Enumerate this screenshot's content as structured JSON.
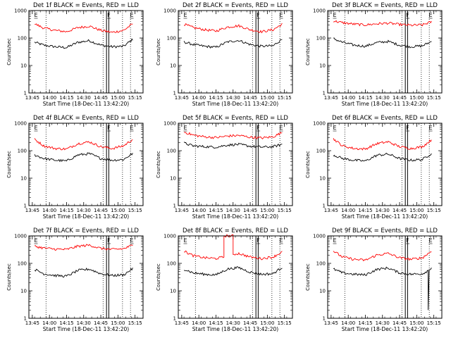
{
  "figure": {
    "background": "#ffffff",
    "plot_background": "#ffffff",
    "frame_color": "#000000",
    "events_color": "#000000",
    "lld_color": "#ff0000"
  },
  "chart_data": [
    {
      "type": "line",
      "title": "Det 1f BLACK = Events, RED = LLD",
      "xlabel": "Start Time (18-Dec-11 13:42:20)",
      "ylabel": "Counts/sec",
      "xlim": [
        "13:42",
        "15:22"
      ],
      "xticks": [
        "13:45",
        "14:00",
        "14:15",
        "14:30",
        "14:45",
        "15:00",
        "15:15"
      ],
      "yscale": "log",
      "ylim": [
        1,
        1000
      ],
      "yticks": [
        "1",
        "10",
        "100",
        "1000"
      ],
      "markers": [
        {
          "label": "E",
          "x": "13:46"
        },
        {
          "label": "F",
          "x": "14:50"
        },
        {
          "label": "E",
          "x": "15:10"
        }
      ],
      "dotted_lines": [
        "13:57",
        "14:47",
        "15:04",
        "15:11"
      ],
      "solid_lines": [
        "14:50",
        "14:52"
      ],
      "series": [
        {
          "name": "BLACK = Events",
          "color": "#000000",
          "x": [
            "13:47",
            "13:55",
            "14:05",
            "14:15",
            "14:25",
            "14:35",
            "14:45",
            "14:55",
            "15:05",
            "15:13"
          ],
          "values": [
            70,
            55,
            48,
            45,
            70,
            80,
            55,
            48,
            50,
            90
          ]
        },
        {
          "name": "RED = LLD",
          "color": "#ff0000",
          "x": [
            "13:47",
            "13:55",
            "14:05",
            "14:15",
            "14:25",
            "14:35",
            "14:45",
            "14:55",
            "15:05",
            "15:13"
          ],
          "values": [
            330,
            230,
            190,
            170,
            240,
            270,
            190,
            160,
            190,
            330
          ]
        }
      ]
    },
    {
      "type": "line",
      "title": "Det 2f BLACK = Events, RED = LLD",
      "xlabel": "Start Time (18-Dec-11 13:42:20)",
      "ylabel": "Counts/sec",
      "xlim": [
        "13:42",
        "15:22"
      ],
      "xticks": [
        "13:45",
        "14:00",
        "14:15",
        "14:30",
        "14:45",
        "15:00",
        "15:15"
      ],
      "yscale": "log",
      "ylim": [
        1,
        1000
      ],
      "yticks": [
        "1",
        "10",
        "100",
        "1000"
      ],
      "markers": [
        {
          "label": "E",
          "x": "13:46"
        },
        {
          "label": "F",
          "x": "14:50"
        },
        {
          "label": "E",
          "x": "15:10"
        }
      ],
      "dotted_lines": [
        "13:57",
        "14:47",
        "15:04",
        "15:11"
      ],
      "solid_lines": [
        "14:50",
        "14:52"
      ],
      "series": [
        {
          "name": "BLACK = Events",
          "color": "#000000",
          "x": [
            "13:47",
            "13:55",
            "14:05",
            "14:15",
            "14:25",
            "14:35",
            "14:45",
            "14:55",
            "15:05",
            "15:13"
          ],
          "values": [
            72,
            58,
            50,
            46,
            72,
            82,
            58,
            50,
            52,
            92
          ]
        },
        {
          "name": "RED = LLD",
          "color": "#ff0000",
          "x": [
            "13:47",
            "13:55",
            "14:05",
            "14:15",
            "14:25",
            "14:35",
            "14:45",
            "14:55",
            "15:05",
            "15:13"
          ],
          "values": [
            320,
            240,
            200,
            180,
            250,
            280,
            200,
            170,
            200,
            320
          ]
        }
      ]
    },
    {
      "type": "line",
      "title": "Det 3f BLACK = Events, RED = LLD",
      "xlabel": "Start Time (18-Dec-11 13:42:20)",
      "ylabel": "Counts/sec",
      "xlim": [
        "13:42",
        "15:22"
      ],
      "xticks": [
        "13:45",
        "14:00",
        "14:15",
        "14:30",
        "14:45",
        "15:00",
        "15:15"
      ],
      "yscale": "log",
      "ylim": [
        1,
        1000
      ],
      "yticks": [
        "1",
        "10",
        "100",
        "1000"
      ],
      "markers": [
        {
          "label": "E",
          "x": "13:46"
        },
        {
          "label": "F",
          "x": "14:50"
        },
        {
          "label": "E",
          "x": "15:10"
        }
      ],
      "dotted_lines": [
        "13:57",
        "14:47",
        "15:04",
        "15:11"
      ],
      "solid_lines": [
        "14:50",
        "14:52"
      ],
      "series": [
        {
          "name": "BLACK = Events",
          "color": "#000000",
          "x": [
            "13:47",
            "13:55",
            "14:05",
            "14:15",
            "14:25",
            "14:35",
            "14:45",
            "14:55",
            "15:05",
            "15:13"
          ],
          "values": [
            95,
            70,
            55,
            50,
            68,
            75,
            55,
            48,
            52,
            75
          ]
        },
        {
          "name": "RED = LLD",
          "color": "#ff0000",
          "x": [
            "13:47",
            "13:55",
            "14:05",
            "14:15",
            "14:25",
            "14:35",
            "14:45",
            "14:55",
            "15:05",
            "15:13"
          ],
          "values": [
            420,
            360,
            320,
            300,
            330,
            350,
            310,
            290,
            300,
            390
          ]
        }
      ]
    },
    {
      "type": "line",
      "title": "Det 4f BLACK = Events, RED = LLD",
      "xlabel": "Start Time (18-Dec-11 13:42:20)",
      "ylabel": "Counts/sec",
      "xlim": [
        "13:42",
        "15:22"
      ],
      "xticks": [
        "13:45",
        "14:00",
        "14:15",
        "14:30",
        "14:45",
        "15:00",
        "15:15"
      ],
      "yscale": "log",
      "ylim": [
        1,
        1000
      ],
      "yticks": [
        "1",
        "10",
        "100",
        "1000"
      ],
      "markers": [
        {
          "label": "E",
          "x": "13:46"
        },
        {
          "label": "F",
          "x": "14:50"
        },
        {
          "label": "E",
          "x": "15:10"
        }
      ],
      "dotted_lines": [
        "13:57",
        "14:47",
        "15:04",
        "15:11"
      ],
      "solid_lines": [
        "14:50",
        "14:52"
      ],
      "series": [
        {
          "name": "BLACK = Events",
          "color": "#000000",
          "x": [
            "13:47",
            "13:55",
            "14:05",
            "14:15",
            "14:25",
            "14:35",
            "14:45",
            "14:55",
            "15:05",
            "15:13"
          ],
          "values": [
            70,
            52,
            45,
            42,
            70,
            78,
            52,
            45,
            48,
            80
          ]
        },
        {
          "name": "RED = LLD",
          "color": "#ff0000",
          "x": [
            "13:47",
            "13:55",
            "14:05",
            "14:15",
            "14:25",
            "14:35",
            "14:45",
            "14:55",
            "15:05",
            "15:13"
          ],
          "values": [
            260,
            150,
            120,
            115,
            180,
            210,
            140,
            120,
            150,
            260
          ]
        }
      ]
    },
    {
      "type": "line",
      "title": "Det 5f BLACK = Events, RED = LLD",
      "xlabel": "Start Time (18-Dec-11 13:42:20)",
      "ylabel": "Counts/sec",
      "xlim": [
        "13:42",
        "15:22"
      ],
      "xticks": [
        "13:45",
        "14:00",
        "14:15",
        "14:30",
        "14:45",
        "15:00",
        "15:15"
      ],
      "yscale": "log",
      "ylim": [
        1,
        1000
      ],
      "yticks": [
        "1",
        "10",
        "100",
        "1000"
      ],
      "markers": [
        {
          "label": "E",
          "x": "13:46"
        },
        {
          "label": "F",
          "x": "14:50"
        },
        {
          "label": "E",
          "x": "15:10"
        }
      ],
      "dotted_lines": [
        "13:57",
        "14:47",
        "15:04",
        "15:11"
      ],
      "solid_lines": [
        "14:50",
        "14:52"
      ],
      "series": [
        {
          "name": "BLACK = Events",
          "color": "#000000",
          "x": [
            "13:47",
            "13:55",
            "14:05",
            "14:15",
            "14:25",
            "14:35",
            "14:45",
            "14:55",
            "15:05",
            "15:13"
          ],
          "values": [
            190,
            150,
            140,
            135,
            160,
            170,
            145,
            135,
            140,
            170
          ]
        },
        {
          "name": "RED = LLD",
          "color": "#ff0000",
          "x": [
            "13:47",
            "13:55",
            "14:05",
            "14:15",
            "14:25",
            "14:35",
            "14:45",
            "14:55",
            "15:05",
            "15:13"
          ],
          "values": [
            480,
            370,
            320,
            300,
            340,
            360,
            310,
            290,
            320,
            460
          ]
        }
      ]
    },
    {
      "type": "line",
      "title": "Det 6f BLACK = Events, RED = LLD",
      "xlabel": "Start Time (18-Dec-11 13:42:20)",
      "ylabel": "Counts/sec",
      "xlim": [
        "13:42",
        "15:22"
      ],
      "xticks": [
        "13:45",
        "14:00",
        "14:15",
        "14:30",
        "14:45",
        "15:00",
        "15:15"
      ],
      "yscale": "log",
      "ylim": [
        1,
        1000
      ],
      "yticks": [
        "1",
        "10",
        "100",
        "1000"
      ],
      "markers": [
        {
          "label": "E",
          "x": "13:46"
        },
        {
          "label": "F",
          "x": "14:50"
        },
        {
          "label": "E",
          "x": "15:10"
        }
      ],
      "dotted_lines": [
        "13:57",
        "14:47",
        "15:04",
        "15:11"
      ],
      "solid_lines": [
        "14:50",
        "14:52"
      ],
      "series": [
        {
          "name": "BLACK = Events",
          "color": "#000000",
          "x": [
            "13:47",
            "13:55",
            "14:05",
            "14:15",
            "14:25",
            "14:35",
            "14:45",
            "14:55",
            "15:05",
            "15:13"
          ],
          "values": [
            70,
            52,
            45,
            42,
            68,
            75,
            52,
            45,
            48,
            80
          ]
        },
        {
          "name": "RED = LLD",
          "color": "#ff0000",
          "x": [
            "13:47",
            "13:55",
            "14:05",
            "14:15",
            "14:25",
            "14:35",
            "14:45",
            "14:55",
            "15:05",
            "15:13"
          ],
          "values": [
            270,
            150,
            120,
            115,
            180,
            210,
            140,
            120,
            140,
            250
          ]
        }
      ]
    },
    {
      "type": "line",
      "title": "Det 7f BLACK = Events, RED = LLD",
      "xlabel": "Start Time (18-Dec-11 13:42:20)",
      "ylabel": "Counts/sec",
      "xlim": [
        "13:42",
        "15:22"
      ],
      "xticks": [
        "13:45",
        "14:00",
        "14:15",
        "14:30",
        "14:45",
        "15:00",
        "15:15"
      ],
      "yscale": "log",
      "ylim": [
        1,
        1000
      ],
      "yticks": [
        "1",
        "10",
        "100",
        "1000"
      ],
      "markers": [
        {
          "label": "E",
          "x": "13:46"
        },
        {
          "label": "F",
          "x": "14:50"
        },
        {
          "label": "E",
          "x": "15:10"
        }
      ],
      "dotted_lines": [
        "13:57",
        "14:47",
        "15:04",
        "15:11"
      ],
      "solid_lines": [
        "14:50",
        "14:52"
      ],
      "series": [
        {
          "name": "BLACK = Events",
          "color": "#000000",
          "x": [
            "13:47",
            "13:55",
            "14:05",
            "14:15",
            "14:25",
            "14:35",
            "14:45",
            "14:55",
            "15:05",
            "15:13"
          ],
          "values": [
            60,
            42,
            36,
            34,
            55,
            62,
            42,
            36,
            38,
            65
          ]
        },
        {
          "name": "RED = LLD",
          "color": "#ff0000",
          "x": [
            "13:47",
            "13:55",
            "14:05",
            "14:15",
            "14:25",
            "14:35",
            "14:45",
            "14:55",
            "15:05",
            "15:13"
          ],
          "values": [
            420,
            360,
            330,
            320,
            420,
            460,
            350,
            320,
            340,
            460
          ]
        }
      ]
    },
    {
      "type": "line",
      "title": "Det 8f BLACK = Events, RED = LLD",
      "xlabel": "Start Time (18-Dec-11 13:42:20)",
      "ylabel": "Counts/sec",
      "xlim": [
        "13:42",
        "15:22"
      ],
      "xticks": [
        "13:45",
        "14:00",
        "14:15",
        "14:30",
        "14:45",
        "15:00",
        "15:15"
      ],
      "yscale": "log",
      "ylim": [
        1,
        1000
      ],
      "yticks": [
        "1",
        "10",
        "100",
        "1000"
      ],
      "markers": [
        {
          "label": "E",
          "x": "13:46"
        },
        {
          "label": "F",
          "x": "14:50"
        },
        {
          "label": "E",
          "x": "15:10"
        }
      ],
      "dotted_lines": [
        "13:57",
        "14:47",
        "15:04",
        "15:11"
      ],
      "solid_lines": [
        "14:50",
        "14:52"
      ],
      "series": [
        {
          "name": "BLACK = Events",
          "color": "#000000",
          "x": [
            "13:47",
            "13:55",
            "14:05",
            "14:15",
            "14:25",
            "14:35",
            "14:45",
            "14:55",
            "15:05",
            "15:13"
          ],
          "values": [
            62,
            45,
            40,
            38,
            62,
            70,
            48,
            40,
            42,
            72
          ]
        },
        {
          "name": "RED = LLD",
          "color": "#ff0000",
          "x": [
            "13:47",
            "13:55",
            "14:05",
            "14:15",
            "14:22",
            "14:22",
            "14:30",
            "14:30",
            "14:35",
            "14:45",
            "14:55",
            "15:05",
            "15:13"
          ],
          "values": [
            280,
            190,
            160,
            150,
            170,
            1000,
            1000,
            210,
            230,
            170,
            150,
            170,
            260
          ]
        }
      ]
    },
    {
      "type": "line",
      "title": "Det 9f BLACK = Events, RED = LLD",
      "xlabel": "Start Time (18-Dec-11 13:42:20)",
      "ylabel": "Counts/sec",
      "xlim": [
        "13:42",
        "15:22"
      ],
      "xticks": [
        "13:45",
        "14:00",
        "14:15",
        "14:30",
        "14:45",
        "15:00",
        "15:15"
      ],
      "yscale": "log",
      "ylim": [
        1,
        1000
      ],
      "yticks": [
        "1",
        "10",
        "100",
        "1000"
      ],
      "markers": [
        {
          "label": "E",
          "x": "13:46"
        },
        {
          "label": "F",
          "x": "14:50"
        },
        {
          "label": "E",
          "x": "15:10"
        }
      ],
      "dotted_lines": [
        "13:57",
        "14:47",
        "15:04",
        "15:11"
      ],
      "solid_lines": [
        "14:50",
        "14:52"
      ],
      "series": [
        {
          "name": "BLACK = Events",
          "color": "#000000",
          "x": [
            "13:47",
            "13:55",
            "14:05",
            "14:15",
            "14:25",
            "14:35",
            "14:45",
            "14:55",
            "15:05",
            "15:10",
            "15:10",
            "15:11",
            "15:13"
          ],
          "values": [
            62,
            45,
            40,
            38,
            60,
            68,
            45,
            40,
            42,
            55,
            2,
            60,
            72
          ]
        },
        {
          "name": "RED = LLD",
          "color": "#ff0000",
          "x": [
            "13:47",
            "13:55",
            "14:05",
            "14:15",
            "14:25",
            "14:35",
            "14:45",
            "14:55",
            "15:05",
            "15:13"
          ],
          "values": [
            280,
            170,
            140,
            130,
            200,
            230,
            160,
            140,
            160,
            280
          ]
        }
      ]
    }
  ]
}
